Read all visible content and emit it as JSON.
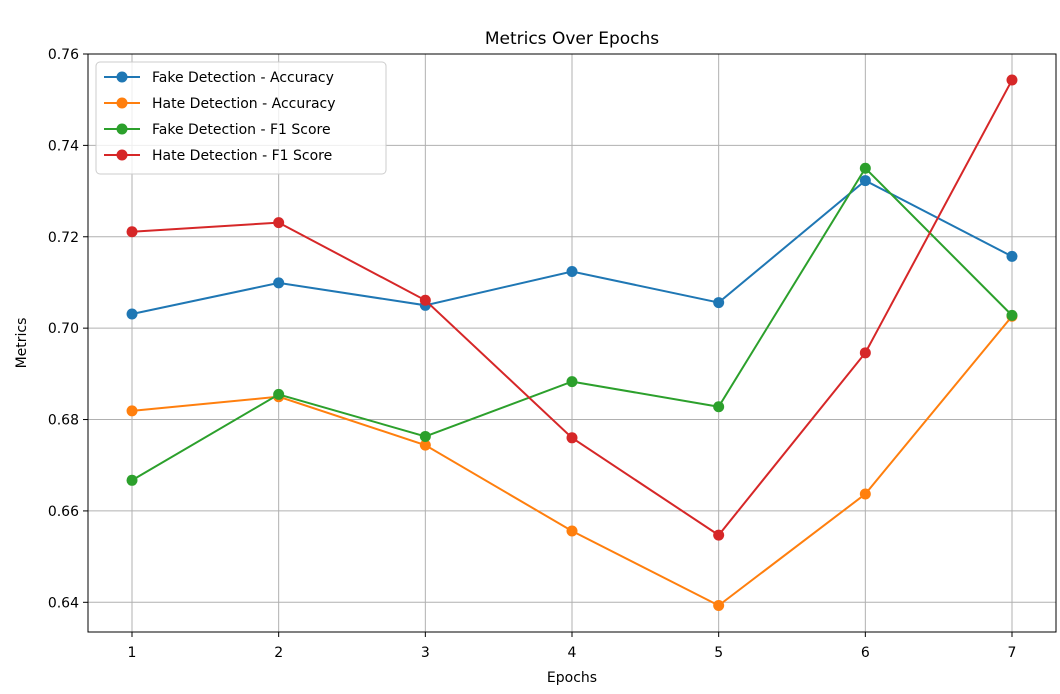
{
  "chart_data": {
    "type": "line",
    "title": "Metrics Over Epochs",
    "xlabel": "Epochs",
    "ylabel": "Metrics",
    "x": [
      1,
      2,
      3,
      4,
      5,
      6,
      7
    ],
    "xlim": [
      0.7,
      7.3
    ],
    "ylim": [
      0.6335,
      0.76
    ],
    "xticks": [
      1,
      2,
      3,
      4,
      5,
      6,
      7
    ],
    "yticks": [
      0.64,
      0.66,
      0.68,
      0.7,
      0.72,
      0.74,
      0.76
    ],
    "ytick_labels": [
      "0.64",
      "0.66",
      "0.68",
      "0.70",
      "0.72",
      "0.74",
      "0.76"
    ],
    "grid": true,
    "legend_position": "top-left",
    "series": [
      {
        "name": "Fake Detection - Accuracy",
        "color": "#1f77b4",
        "values": [
          0.7031,
          0.7099,
          0.705,
          0.7124,
          0.7056,
          0.7323,
          0.7157
        ]
      },
      {
        "name": "Hate Detection - Accuracy",
        "color": "#ff7f0e",
        "values": [
          0.6819,
          0.685,
          0.6744,
          0.6556,
          0.6393,
          0.6637,
          0.7026
        ]
      },
      {
        "name": "Fake Detection - F1 Score",
        "color": "#2ca02c",
        "values": [
          0.6667,
          0.6855,
          0.6763,
          0.6883,
          0.6828,
          0.735,
          0.7028
        ]
      },
      {
        "name": "Hate Detection - F1 Score",
        "color": "#d62728",
        "values": [
          0.7211,
          0.7231,
          0.7061,
          0.676,
          0.6547,
          0.6946,
          0.7543
        ]
      }
    ]
  }
}
